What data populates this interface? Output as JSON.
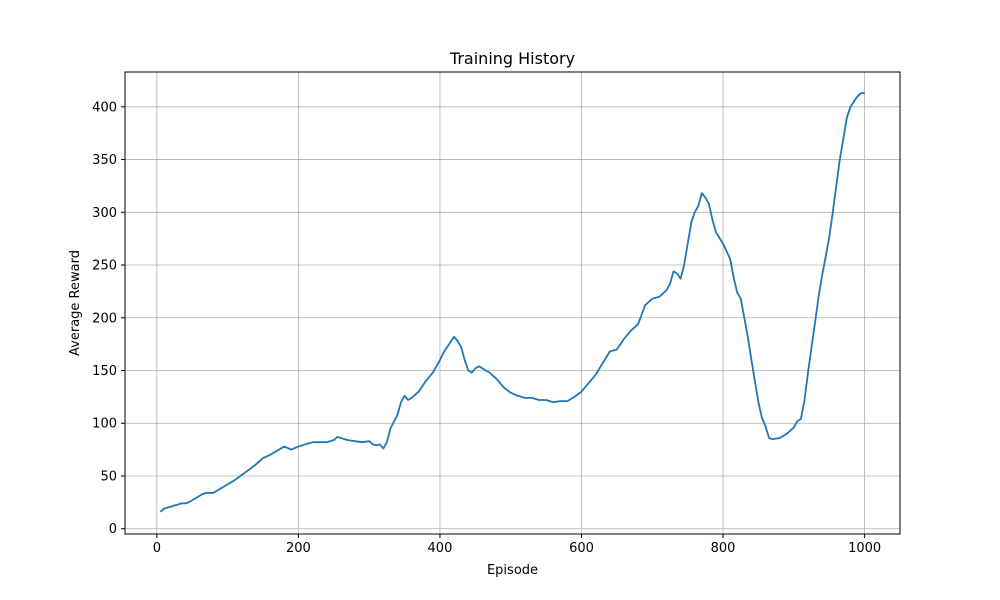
{
  "chart_data": {
    "type": "line",
    "title": "Training History",
    "xlabel": "Episode",
    "ylabel": "Average Reward",
    "xlim": [
      -45,
      1050
    ],
    "ylim": [
      -5,
      433
    ],
    "xticks": [
      0,
      200,
      400,
      600,
      800,
      1000
    ],
    "yticks": [
      0,
      50,
      100,
      150,
      200,
      250,
      300,
      350,
      400
    ],
    "grid": true,
    "legend": "none",
    "series_color": "#1f77b4",
    "series": [
      {
        "x": [
          5,
          10,
          15,
          20,
          25,
          30,
          35,
          40,
          45,
          50,
          55,
          60,
          65,
          70,
          75,
          80,
          90,
          100,
          110,
          120,
          130,
          140,
          150,
          160,
          170,
          180,
          190,
          200,
          210,
          220,
          230,
          240,
          250,
          255,
          260,
          265,
          270,
          280,
          290,
          300,
          305,
          310,
          315,
          320,
          325,
          330,
          340,
          345,
          350,
          355,
          360,
          370,
          380,
          390,
          400,
          405,
          410,
          415,
          420,
          425,
          430,
          435,
          440,
          445,
          450,
          455,
          460,
          470,
          480,
          490,
          500,
          510,
          520,
          530,
          540,
          550,
          560,
          570,
          580,
          590,
          600,
          610,
          620,
          630,
          640,
          650,
          660,
          670,
          680,
          690,
          700,
          710,
          720,
          725,
          730,
          735,
          740,
          745,
          750,
          755,
          760,
          765,
          770,
          775,
          780,
          785,
          790,
          800,
          810,
          815,
          820,
          825,
          830,
          835,
          840,
          845,
          850,
          855,
          860,
          865,
          870,
          880,
          890,
          900,
          905,
          910,
          915,
          920,
          925,
          930,
          935,
          940,
          945,
          950,
          955,
          960,
          965,
          970,
          975,
          980,
          985,
          990,
          995,
          1000
        ],
        "values": [
          16,
          19,
          20,
          21,
          22,
          23,
          24,
          24,
          25,
          27,
          29,
          31,
          33,
          34,
          34,
          34,
          38,
          42,
          46,
          51,
          56,
          61,
          67,
          70,
          74,
          78,
          75,
          78,
          80,
          82,
          82,
          82,
          84,
          87,
          86,
          85,
          84,
          83,
          82,
          83,
          80,
          79,
          80,
          76,
          82,
          95,
          108,
          120,
          126,
          122,
          124,
          130,
          140,
          148,
          160,
          167,
          172,
          177,
          182,
          178,
          172,
          160,
          150,
          148,
          152,
          154,
          152,
          148,
          142,
          134,
          129,
          126,
          124,
          124,
          122,
          122,
          120,
          121,
          121,
          125,
          130,
          138,
          146,
          157,
          168,
          170,
          180,
          188,
          194,
          212,
          218,
          220,
          226,
          232,
          244,
          242,
          237,
          250,
          270,
          290,
          300,
          306,
          318,
          314,
          308,
          293,
          281,
          270,
          256,
          238,
          224,
          218,
          200,
          182,
          160,
          140,
          120,
          105,
          97,
          86,
          85,
          86,
          90,
          96,
          102,
          104,
          122,
          148,
          172,
          196,
          220,
          240,
          258,
          276,
          300,
          325,
          350,
          370,
          390,
          400,
          405,
          410,
          413,
          413
        ]
      }
    ]
  }
}
